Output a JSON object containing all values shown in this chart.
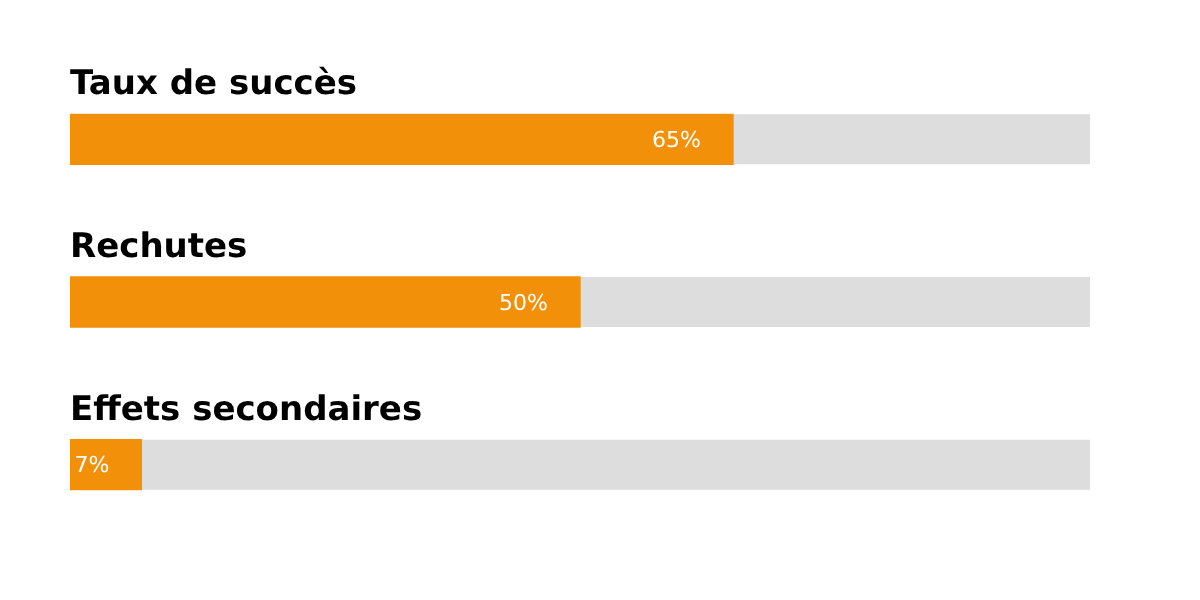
{
  "chart_data": {
    "type": "bar",
    "orientation": "horizontal",
    "categories": [
      "Taux de succès",
      "Rechutes",
      "Effets secondaires"
    ],
    "values": [
      65,
      50,
      7
    ],
    "color": "#f39009",
    "value_labels": [
      "65%",
      "50%",
      "7%"
    ],
    "xlim": [
      0,
      100
    ],
    "tick_labels": false,
    "legend": false
  }
}
